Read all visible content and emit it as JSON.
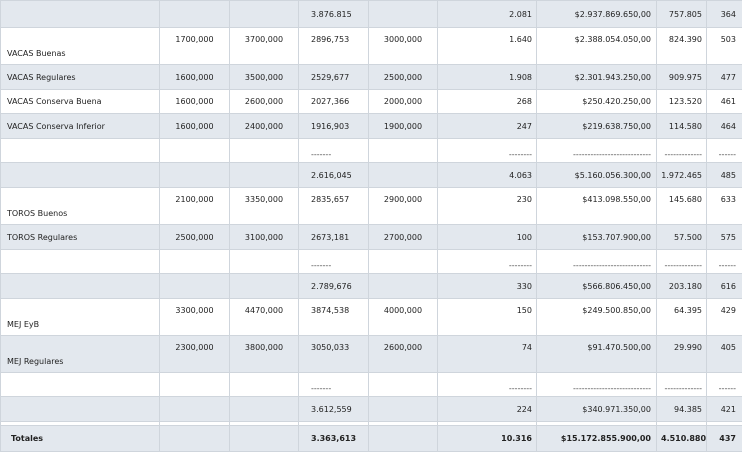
{
  "rows": [
    {
      "style": "shade",
      "h": 27,
      "cells": [
        "",
        "",
        "",
        "3.876.815",
        "",
        "2.081",
        "$2.937.869.650,00",
        "757.805",
        "364"
      ]
    },
    {
      "style": "white tall",
      "h": 37,
      "cells": [
        "VACAS Buenas",
        "1700,000",
        "3700,000",
        "2896,753",
        "3000,000",
        "1.640",
        "$2.388.054.050,00",
        "824.390",
        "503"
      ]
    },
    {
      "style": "shade short",
      "h": 25,
      "cells": [
        "VACAS Regulares",
        "1600,000",
        "3500,000",
        "2529,677",
        "2500,000",
        "1.908",
        "$2.301.943.250,00",
        "909.975",
        "477"
      ]
    },
    {
      "style": "white short",
      "h": 24,
      "cells": [
        "VACAS Conserva Buena",
        "1600,000",
        "2600,000",
        "2027,366",
        "2000,000",
        "268",
        "$250.420.250,00",
        "123.520",
        "461"
      ]
    },
    {
      "style": "shade short",
      "h": 25,
      "cells": [
        "VACAS Conserva Inferior",
        "1600,000",
        "2400,000",
        "1916,903",
        "1900,000",
        "247",
        "$219.638.750,00",
        "114.580",
        "464"
      ]
    },
    {
      "style": "white dash",
      "h": 24,
      "cells": [
        "",
        "",
        "",
        "-------",
        "",
        "--------",
        "---------------------------",
        "-------------",
        "------"
      ]
    },
    {
      "style": "shade short",
      "h": 25,
      "cells": [
        "",
        "",
        "",
        "2.616,045",
        "",
        "4.063",
        "$5.160.056.300,00",
        "1.972.465",
        "485"
      ]
    },
    {
      "style": "white tall",
      "h": 37,
      "cells": [
        "TOROS Buenos",
        "2100,000",
        "3350,000",
        "2835,657",
        "2900,000",
        "230",
        "$413.098.550,00",
        "145.680",
        "633"
      ]
    },
    {
      "style": "shade short",
      "h": 25,
      "cells": [
        "TOROS Regulares",
        "2500,000",
        "3100,000",
        "2673,181",
        "2700,000",
        "100",
        "$153.707.900,00",
        "57.500",
        "575"
      ]
    },
    {
      "style": "white dash",
      "h": 24,
      "cells": [
        "",
        "",
        "",
        "-------",
        "",
        "--------",
        "---------------------------",
        "-------------",
        "------"
      ]
    },
    {
      "style": "shade short",
      "h": 25,
      "cells": [
        "",
        "",
        "",
        "2.789,676",
        "",
        "330",
        "$566.806.450,00",
        "203.180",
        "616"
      ]
    },
    {
      "style": "white tall",
      "h": 37,
      "cells": [
        "MEJ EyB",
        "3300,000",
        "4470,000",
        "3874,538",
        "4000,000",
        "150",
        "$249.500.850,00",
        "64.395",
        "429"
      ]
    },
    {
      "style": "shade tall",
      "h": 37,
      "cells": [
        "MEJ Regulares",
        "2300,000",
        "3800,000",
        "3050,033",
        "2600,000",
        "74",
        "$91.470.500,00",
        "29.990",
        "405"
      ]
    },
    {
      "style": "white dash",
      "h": 24,
      "cells": [
        "",
        "",
        "",
        "-------",
        "",
        "--------",
        "---------------------------",
        "-------------",
        "------"
      ]
    },
    {
      "style": "shade short",
      "h": 25,
      "cells": [
        "",
        "",
        "",
        "3.612,559",
        "",
        "224",
        "$340.971.350,00",
        "94.385",
        "421"
      ]
    },
    {
      "style": "white short",
      "h": 4,
      "cells": [
        "",
        "",
        "",
        "",
        "",
        "",
        "",
        "",
        ""
      ]
    },
    {
      "style": "total",
      "h": 26,
      "cells": [
        "Totales",
        "",
        "",
        "3.363,613",
        "",
        "10.316",
        "$15.172.855.900,00",
        "4.510.880",
        "437"
      ]
    }
  ]
}
